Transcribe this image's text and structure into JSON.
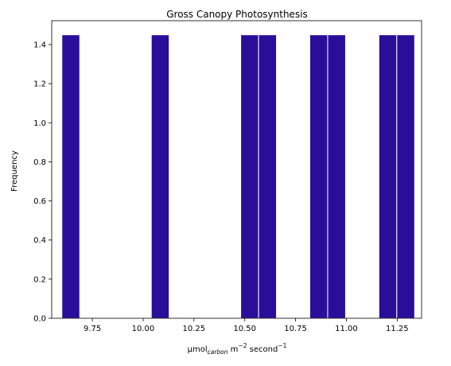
{
  "chart_data": {
    "type": "bar",
    "title": "Gross Canopy Photosynthesis",
    "xlabel": {
      "base": "μmol",
      "sub": "carbon",
      "mid": " m",
      "sup1": "−2",
      "tail": " second",
      "sup2": "−1"
    },
    "ylabel": "Frequency",
    "xlim": [
      9.55,
      11.37
    ],
    "ylim": [
      0,
      1.522
    ],
    "x_ticks": [
      "9.75",
      "10.00",
      "10.25",
      "10.50",
      "10.75",
      "11.00",
      "11.25"
    ],
    "y_ticks": [
      "0.0",
      "0.2",
      "0.4",
      "0.6",
      "0.8",
      "1.0",
      "1.2",
      "1.4"
    ],
    "bar_color": "#2a0e9a",
    "bar_edge": "#ffffff",
    "bins": [
      {
        "x0": 9.6,
        "x1": 9.688,
        "value": 1.45
      },
      {
        "x0": 10.04,
        "x1": 10.128,
        "value": 1.45
      },
      {
        "x0": 10.48,
        "x1": 10.568,
        "value": 1.45
      },
      {
        "x0": 10.568,
        "x1": 10.656,
        "value": 1.45
      },
      {
        "x0": 10.82,
        "x1": 10.908,
        "value": 1.45
      },
      {
        "x0": 10.908,
        "x1": 10.996,
        "value": 1.45
      },
      {
        "x0": 11.16,
        "x1": 11.248,
        "value": 1.45
      },
      {
        "x0": 11.248,
        "x1": 11.336,
        "value": 1.45
      }
    ]
  }
}
